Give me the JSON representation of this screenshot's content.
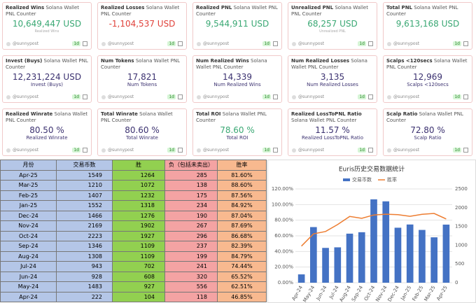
{
  "cards": [
    {
      "title": "Realized Wins",
      "subtitle": "Solana Wallet PNL Counter",
      "value": "10,649,447 USD",
      "label": "Realized Wins",
      "color": "#3aa874",
      "user": "@sunnypost",
      "badge": "1d"
    },
    {
      "title": "Realized Losses",
      "subtitle": "Solana Wallet PNL Counter",
      "value": "-1,104,537 USD",
      "color": "#e0413a",
      "user": "@sunnypost",
      "badge": "1d"
    },
    {
      "title": "Realized PNL",
      "subtitle": "Solana Wallet PNL Counter",
      "value": "9,544,911 USD",
      "color": "#3aa874",
      "user": "@sunnypost",
      "badge": "1d"
    },
    {
      "title": "Unrealized PNL",
      "subtitle": "Solana Wallet PNL Counter",
      "value": "68,257 USD",
      "label": "Unrealized PNL",
      "color": "#3aa874",
      "user": "@sunnypost",
      "badge": "1d"
    },
    {
      "title": "Total PNL",
      "subtitle": "Solana Wallet PNL Counter",
      "value": "9,613,168 USD",
      "color": "#3aa874",
      "user": "@sunnypost",
      "badge": "1d"
    },
    {
      "title": "Invest (Buys)",
      "subtitle": "Solana Wallet PNL Counter",
      "value": "12,231,224 USD",
      "label": "Invest (Buys)",
      "color": "#3b3170",
      "user": "@sunnypost",
      "badge": "1d"
    },
    {
      "title": "Num Tokens",
      "subtitle": "Solana Wallet PNL Counter",
      "value": "17,821",
      "label": "Num Tokens",
      "color": "#3b3170",
      "user": "@sunnypost",
      "badge": "1d"
    },
    {
      "title": "Num Realized Wins",
      "subtitle": "Solana Wallet PNL Counter",
      "value": "14,339",
      "label": "Num Realized Wins",
      "color": "#3b3170",
      "user": "@sunnypost",
      "badge": "1d"
    },
    {
      "title": "Num Realized Losses",
      "subtitle": "Solana Wallet PNL Counter",
      "value": "3,135",
      "label": "Num Realized Losses",
      "color": "#3b3170",
      "user": "@sunnypost",
      "badge": "1d"
    },
    {
      "title": "Scalps <120secs",
      "subtitle": "Solana Wallet PNL Counter",
      "value": "12,969",
      "label": "Scalps <120secs",
      "color": "#3b3170",
      "user": "@sunnypost",
      "badge": "1d"
    },
    {
      "title": "Realized Winrate",
      "subtitle": "Solana Wallet PNL Counter",
      "value": "80.50 %",
      "label": "Realized Winrate",
      "color": "#3b3170",
      "user": "@sunnypost",
      "badge": "1d"
    },
    {
      "title": "Total Winrate",
      "subtitle": "Solana Wallet PNL Counter",
      "value": "80.60 %",
      "label": "Total Winrate",
      "color": "#3b3170",
      "user": "@sunnypost",
      "badge": "1d"
    },
    {
      "title": "Total ROI",
      "subtitle": "Solana Wallet PNL Counter",
      "value": "78.60 %",
      "label": "Total ROI",
      "color": "#3aa874",
      "user": "@sunnypost",
      "badge": "1d"
    },
    {
      "title": "Realized LossToPNL Ratio",
      "subtitle": "Solana Wallet PNL Counter",
      "value": "11.57 %",
      "label": "Realized LossToPNL Ratio",
      "color": "#3b3170",
      "user": "@sunnypost",
      "badge": "1d"
    },
    {
      "title": "Scalp Ratio",
      "subtitle": "Solana Wallet PNL Counter",
      "value": "72.80 %",
      "label": "Scalp Ratio",
      "color": "#3b3170",
      "user": "@sunnypost",
      "badge": "1d"
    }
  ],
  "table": {
    "header": [
      "月份",
      "交易币数",
      "胜",
      "负（包括未卖出）",
      "胜率"
    ],
    "colors": [
      "#b4c6e7",
      "#b4c6e7",
      "#92d050",
      "#f4a3a3",
      "#f8b98f"
    ],
    "rows": [
      [
        "Apr-25",
        "1549",
        "1264",
        "285",
        "81.60%"
      ],
      [
        "Mar-25",
        "1210",
        "1072",
        "138",
        "88.60%"
      ],
      [
        "Feb-25",
        "1407",
        "1232",
        "175",
        "87.56%"
      ],
      [
        "Jan-25",
        "1552",
        "1318",
        "234",
        "84.92%"
      ],
      [
        "Dec-24",
        "1466",
        "1276",
        "190",
        "87.04%"
      ],
      [
        "Nov-24",
        "2169",
        "1902",
        "267",
        "87.69%"
      ],
      [
        "Oct-24",
        "2223",
        "1927",
        "296",
        "86.68%"
      ],
      [
        "Sep-24",
        "1346",
        "1109",
        "237",
        "82.39%"
      ],
      [
        "Aug-24",
        "1308",
        "1109",
        "199",
        "84.79%"
      ],
      [
        "Jul-24",
        "943",
        "702",
        "241",
        "74.44%"
      ],
      [
        "Jun-24",
        "928",
        "608",
        "320",
        "65.52%"
      ],
      [
        "May-24",
        "1483",
        "927",
        "556",
        "62.51%"
      ],
      [
        "Apr-24",
        "222",
        "104",
        "118",
        "46.85%"
      ]
    ]
  },
  "chart_data": {
    "type": "combo",
    "title": "Euris历史交易数据统计",
    "categories": [
      "Apr-24",
      "May-24",
      "Jun-24",
      "Jul-24",
      "Aug-24",
      "Sep-24",
      "Oct-24",
      "Nov-24",
      "Dec-24",
      "Jan-25",
      "Feb-25",
      "Mar-25",
      "Apr-25"
    ],
    "series": [
      {
        "name": "交易币数",
        "color": "#4472c4",
        "type": "bar",
        "axis": "y2",
        "values": [
          222,
          1483,
          928,
          943,
          1308,
          1346,
          2223,
          2169,
          1466,
          1552,
          1407,
          1210,
          1549
        ]
      },
      {
        "name": "胜率",
        "color": "#ed7d31",
        "type": "line",
        "values": [
          46.85,
          62.51,
          65.52,
          74.44,
          84.79,
          82.39,
          86.68,
          87.69,
          87.04,
          84.92,
          87.56,
          88.6,
          81.6
        ]
      }
    ],
    "ylim": [
      0,
      120
    ],
    "yticks": [
      {
        "value": 0,
        "label": "0.00%"
      },
      {
        "value": 20,
        "label": "20.00%"
      },
      {
        "value": 40,
        "label": "40.00%"
      },
      {
        "value": 60,
        "label": "60.00%"
      },
      {
        "value": 80,
        "label": "80.00%"
      },
      {
        "value": 100,
        "label": "100.00%"
      },
      {
        "value": 120,
        "label": "120.00%"
      }
    ],
    "y2lim": [
      0,
      2500
    ],
    "y2ticks": [
      0,
      500,
      1000,
      1500,
      2000,
      2500
    ],
    "grid": true
  }
}
